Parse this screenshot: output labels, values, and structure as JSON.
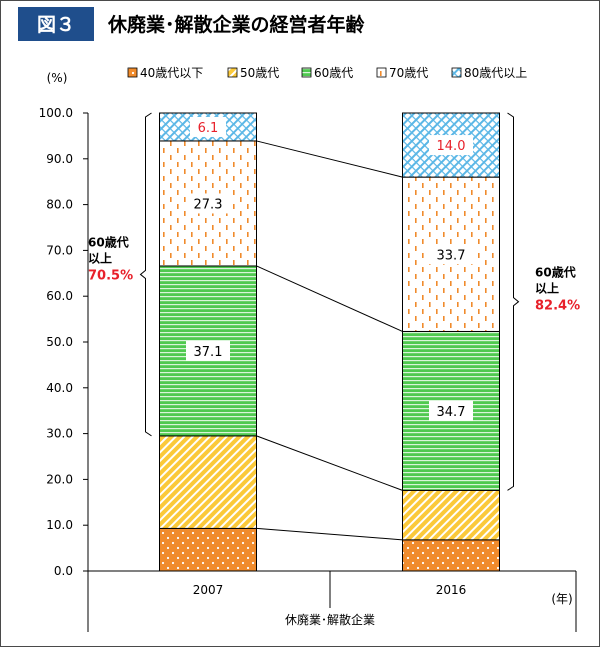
{
  "header": {
    "fig_number": "図３",
    "title": "休廃業･解散企業の経営者年齢"
  },
  "chart_data": {
    "type": "bar",
    "stacked": true,
    "ylabel": "(%)",
    "xlabel": "(年)",
    "group_label": "休廃業･解散企業",
    "ylim": [
      0,
      100
    ],
    "y_ticks": [
      "0.0",
      "10.0",
      "20.0",
      "30.0",
      "40.0",
      "50.0",
      "60.0",
      "70.0",
      "80.0",
      "90.0",
      "100.0"
    ],
    "categories": [
      "2007",
      "2016"
    ],
    "legend_position": "top",
    "series": [
      {
        "name": "40歳代以下",
        "values": [
          9.3,
          6.8
        ],
        "color": "#f08b2c",
        "pattern": "dots"
      },
      {
        "name": "50歳代",
        "values": [
          20.2,
          10.8
        ],
        "color": "#fbc93a",
        "pattern": "diagonal"
      },
      {
        "name": "60歳代",
        "values": [
          37.1,
          34.7
        ],
        "color": "#4fc94f",
        "pattern": "horizontal"
      },
      {
        "name": "70歳代",
        "values": [
          27.3,
          33.7
        ],
        "color": "#f08b2c",
        "pattern": "dashes"
      },
      {
        "name": "80歳代以上",
        "values": [
          6.1,
          14.0
        ],
        "color": "#5bb7e6",
        "pattern": "crosshatch"
      }
    ],
    "data_labels": [
      {
        "category": "2007",
        "series": "60歳代",
        "text": "37.1",
        "color": "#000000"
      },
      {
        "category": "2007",
        "series": "70歳代",
        "text": "27.3",
        "color": "#000000"
      },
      {
        "category": "2007",
        "series": "80歳代以上",
        "text": "6.1",
        "color": "#e8202a"
      },
      {
        "category": "2016",
        "series": "60歳代",
        "text": "34.7",
        "color": "#000000"
      },
      {
        "category": "2016",
        "series": "70歳代",
        "text": "33.7",
        "color": "#000000"
      },
      {
        "category": "2016",
        "series": "80歳代以上",
        "text": "14.0",
        "color": "#e8202a"
      }
    ],
    "annotations": [
      {
        "category": "2007",
        "label_line1": "60歳代",
        "label_line2": "以上",
        "value": "70.5%",
        "value_color": "#e8202a"
      },
      {
        "category": "2016",
        "label_line1": "60歳代",
        "label_line2": "以上",
        "value": "82.4%",
        "value_color": "#e8202a"
      }
    ]
  },
  "colors": {
    "header_badge": "#1f4e8c",
    "accent_red": "#e8202a"
  }
}
